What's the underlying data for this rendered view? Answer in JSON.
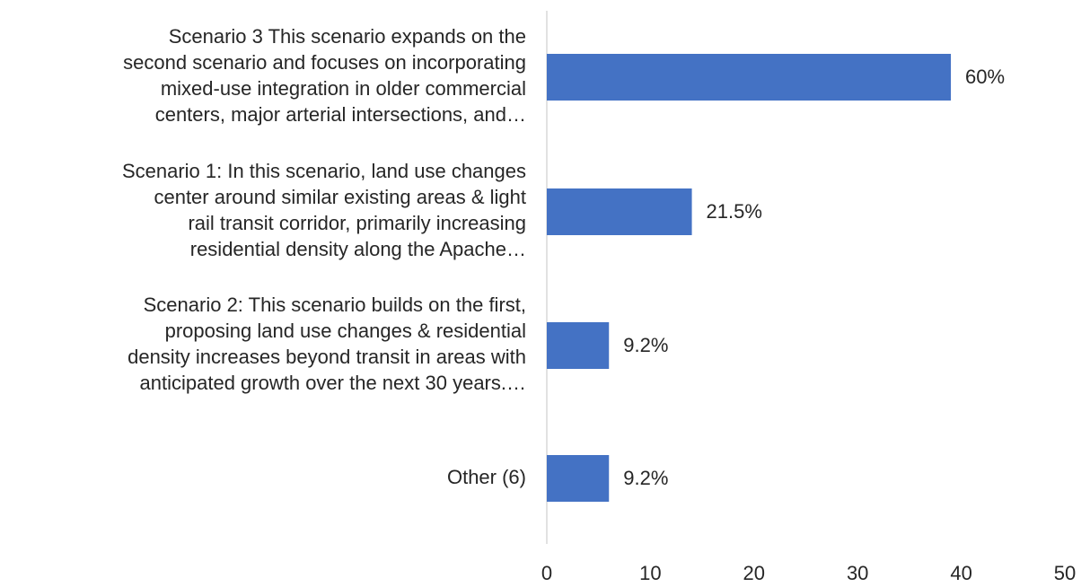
{
  "chart_data": {
    "type": "bar",
    "orientation": "horizontal",
    "categories": [
      "Scenario 3 This scenario expands on the second scenario and focuses on incorporating mixed-use integration in older commercial centers, major arterial intersections, and…",
      "Scenario 1: In this scenario, land use changes center around similar existing areas & light rail transit corridor, primarily increasing residential density along the Apache…",
      "Scenario 2: This scenario builds on the first, proposing land use changes & residential density increases beyond transit in areas with anticipated growth over the next 30 years.…",
      "Other (6)"
    ],
    "category_lines": [
      [
        "Scenario 3 This scenario expands on the",
        "second scenario and focuses on incorporating",
        "mixed-use integration in older commercial",
        "centers, major arterial intersections, and…"
      ],
      [
        "Scenario 1: In this scenario, land use changes",
        "center around similar existing areas & light",
        "rail transit corridor, primarily increasing",
        "residential density along the Apache…"
      ],
      [
        "Scenario 2: This scenario builds on the first,",
        "proposing land use changes & residential",
        "density increases beyond transit in areas with",
        "anticipated growth over the next 30 years.…"
      ],
      [
        "Other (6)"
      ]
    ],
    "values": [
      39,
      14,
      6,
      6
    ],
    "data_labels": [
      "60%",
      "21.5%",
      "9.2%",
      "9.2%"
    ],
    "xlim": [
      0,
      50
    ],
    "xticks": [
      "0",
      "10",
      "20",
      "30",
      "40",
      "50"
    ],
    "title": "",
    "xlabel": "",
    "ylabel": "",
    "grid": false,
    "legend": "none",
    "bar_color": "#4472C4",
    "axis_color": "#d9d9d9"
  }
}
